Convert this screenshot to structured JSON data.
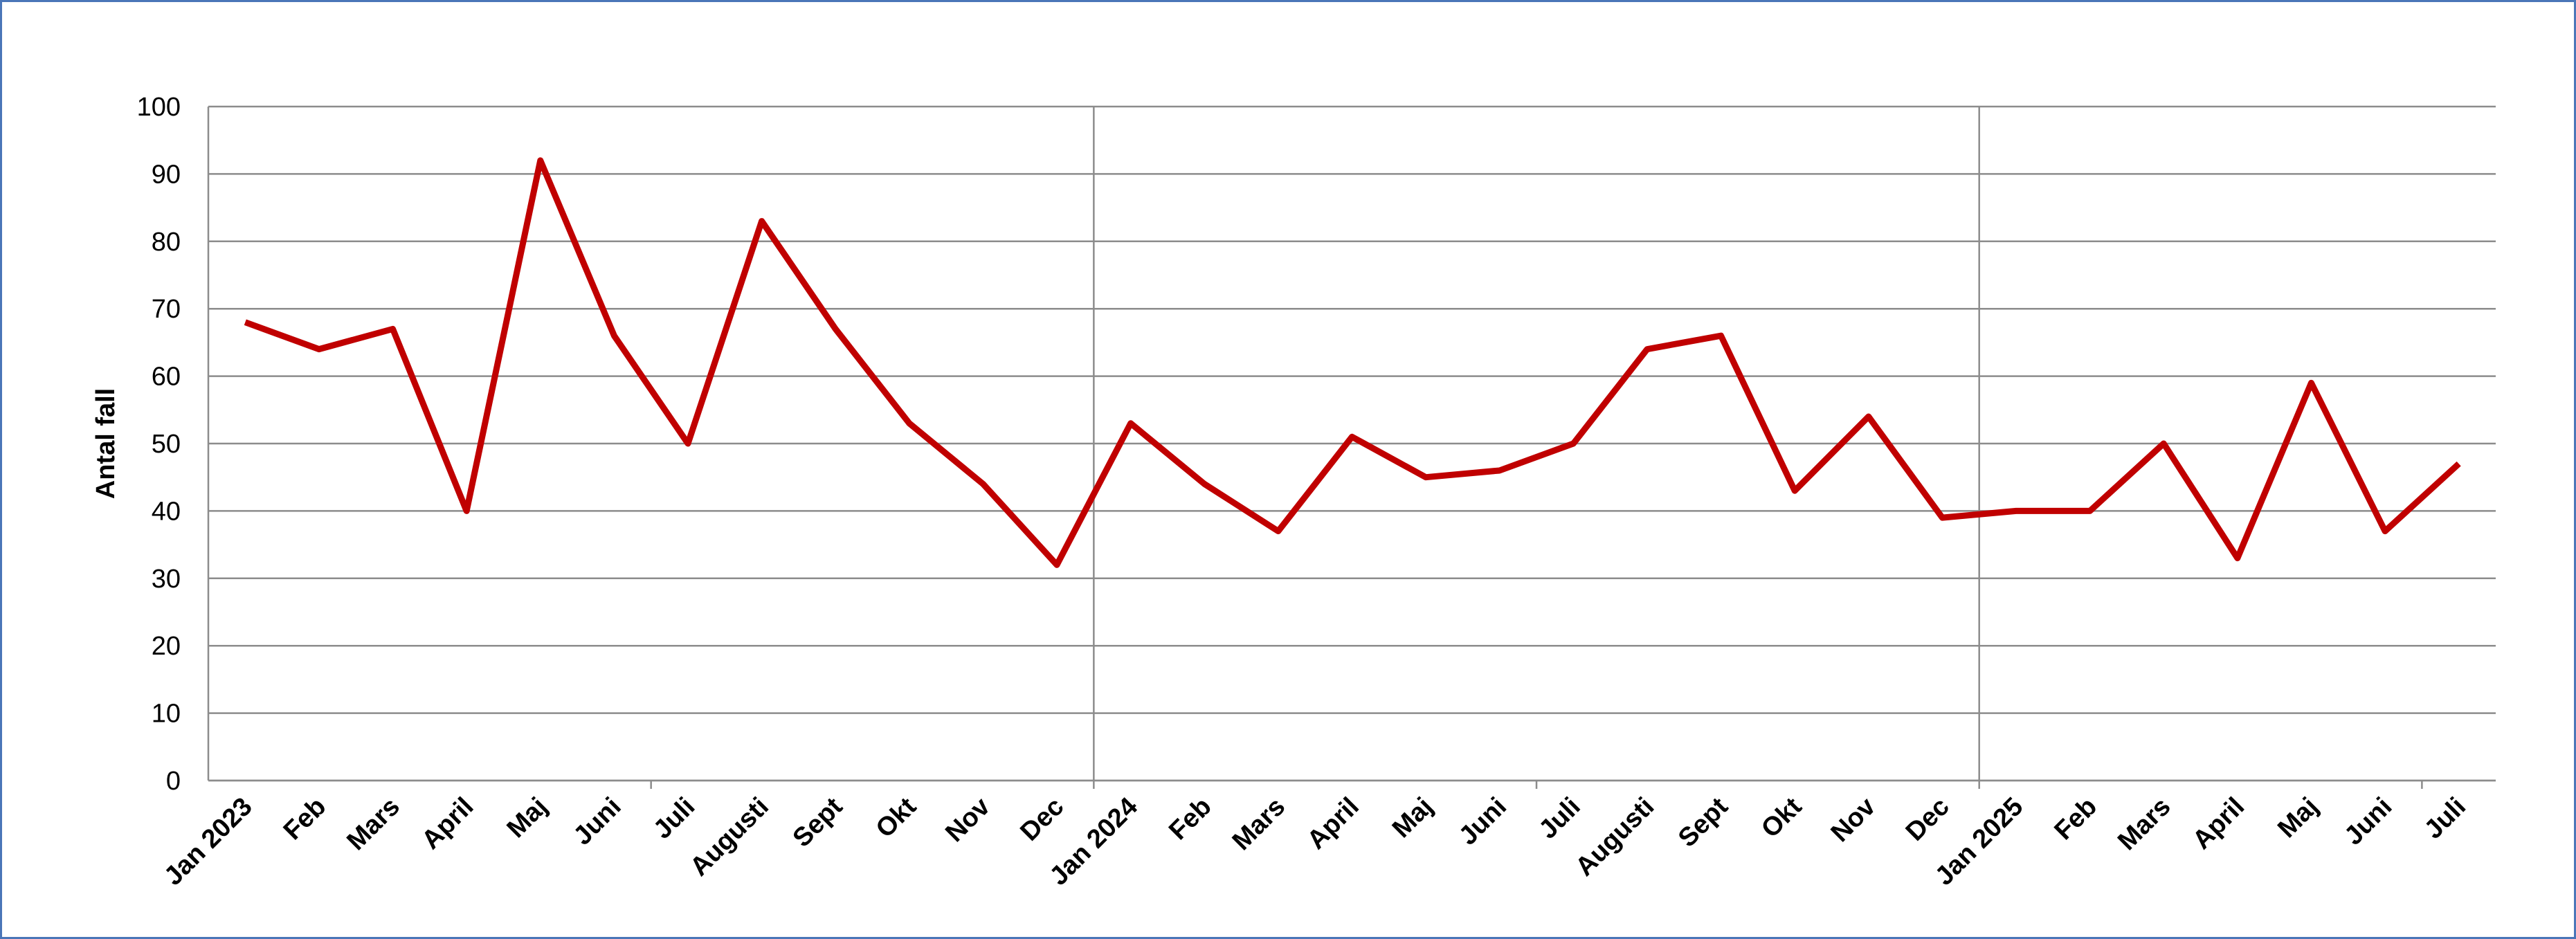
{
  "chart_data": {
    "type": "line",
    "y_label": "Antal fall",
    "categories": [
      "Jan 2023",
      "Feb",
      "Mars",
      "April",
      "Maj",
      "Juni",
      "Juli",
      "Augusti",
      "Sept",
      "Okt",
      "Nov",
      "Dec",
      "Jan 2024",
      "Feb",
      "Mars",
      "April",
      "Maj",
      "Juni",
      "Juli",
      "Augusti",
      "Sept",
      "Okt",
      "Nov",
      "Dec",
      "Jan 2025",
      "Feb",
      "Mars",
      "April",
      "Maj",
      "Juni",
      "Juli"
    ],
    "values": [
      68,
      64,
      67,
      40,
      92,
      66,
      50,
      83,
      67,
      53,
      44,
      32,
      53,
      44,
      37,
      51,
      45,
      46,
      50,
      64,
      66,
      43,
      54,
      39,
      40,
      40,
      50,
      33,
      59,
      37,
      47
    ],
    "color": "#c00000",
    "ylim": [
      0,
      100
    ],
    "yticks": [
      0,
      10,
      20,
      30,
      40,
      50,
      60,
      70,
      80,
      90,
      100
    ],
    "grid": true
  }
}
